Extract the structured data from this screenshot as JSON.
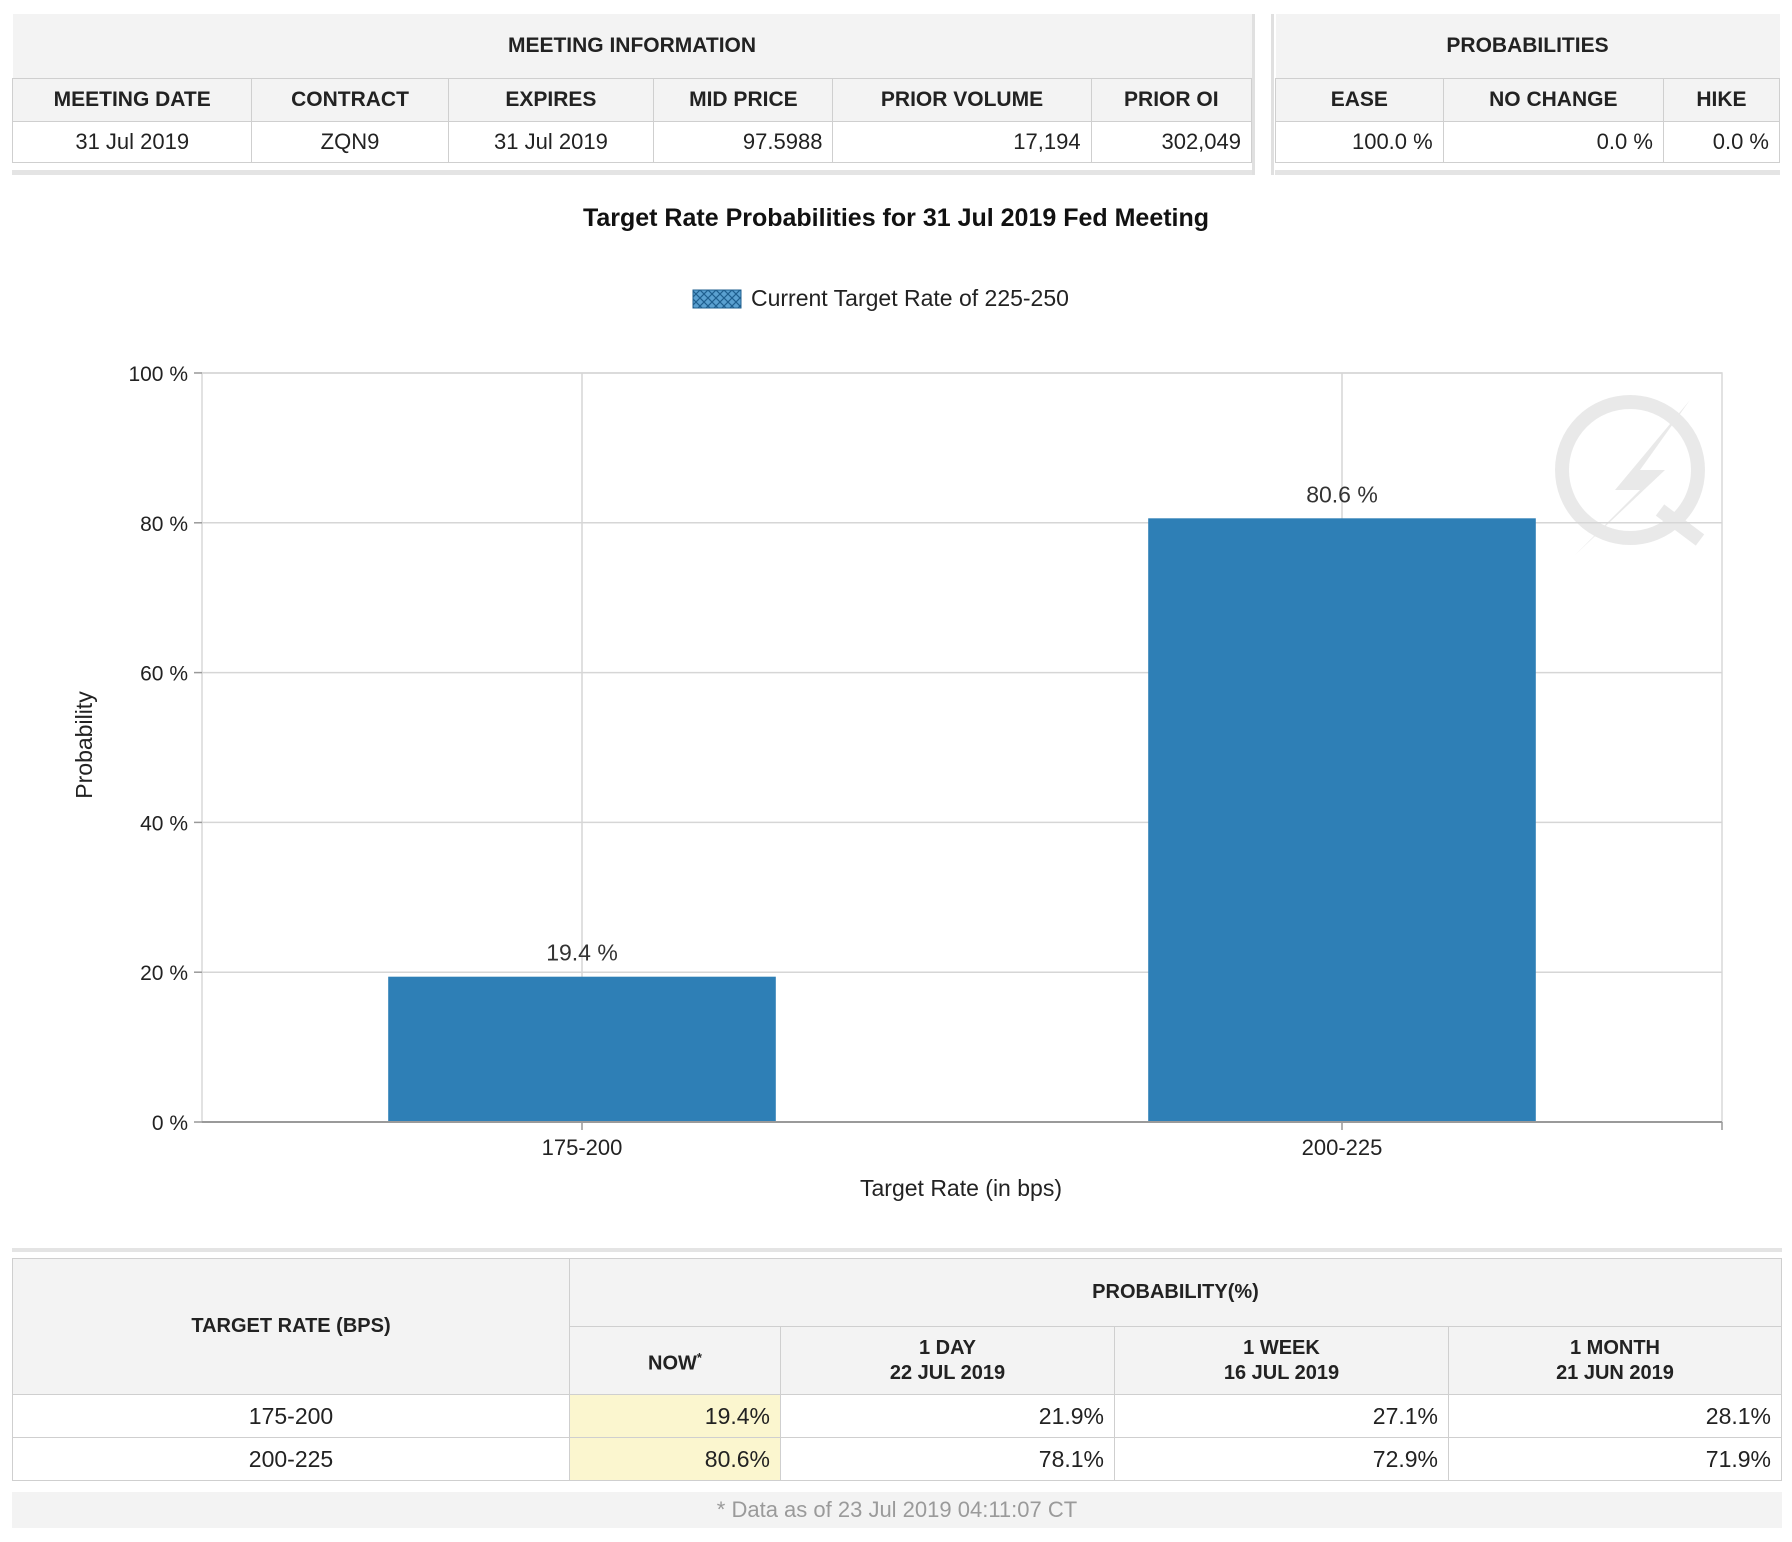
{
  "meeting_info": {
    "group_label": "MEETING INFORMATION",
    "headers": [
      "MEETING DATE",
      "CONTRACT",
      "EXPIRES",
      "MID PRICE",
      "PRIOR VOLUME",
      "PRIOR OI"
    ],
    "row": [
      "31 Jul 2019",
      "ZQN9",
      "31 Jul 2019",
      "97.5988",
      "17,194",
      "302,049"
    ]
  },
  "probabilities": {
    "group_label": "PROBABILITIES",
    "headers": [
      "EASE",
      "NO CHANGE",
      "HIKE"
    ],
    "row": [
      "100.0 %",
      "0.0 %",
      "0.0 %"
    ]
  },
  "chart_data": {
    "type": "bar",
    "title": "Target Rate Probabilities for 31 Jul 2019 Fed Meeting",
    "legend": "Current Target Rate of 225-250",
    "legend_position": "top-center",
    "xlabel": "Target Rate (in bps)",
    "ylabel": "Probability",
    "categories": [
      "175-200",
      "200-225"
    ],
    "values": [
      19.4,
      80.6
    ],
    "data_labels": [
      "19.4 %",
      "80.6 %"
    ],
    "ylim": [
      0,
      100
    ],
    "yticks": [
      0,
      20,
      40,
      60,
      80,
      100
    ],
    "ytick_labels": [
      "0 %",
      "20 %",
      "40 %",
      "60 %",
      "80 %",
      "100 %"
    ],
    "grid": true,
    "bar_color": "#2e7fb6"
  },
  "target_table": {
    "row_header": "TARGET RATE (BPS)",
    "group_label": "PROBABILITY(%)",
    "columns": [
      {
        "line1": "NOW",
        "marker": "*",
        "line2": ""
      },
      {
        "line1": "1 DAY",
        "line2": "22 JUL 2019"
      },
      {
        "line1": "1 WEEK",
        "line2": "16 JUL 2019"
      },
      {
        "line1": "1 MONTH",
        "line2": "21 JUN 2019"
      }
    ],
    "rows": [
      {
        "rate": "175-200",
        "values": [
          "19.4%",
          "21.9%",
          "27.1%",
          "28.1%"
        ]
      },
      {
        "rate": "200-225",
        "values": [
          "80.6%",
          "78.1%",
          "72.9%",
          "71.9%"
        ]
      }
    ],
    "footnote": "* Data as of 23 Jul 2019 04:11:07 CT"
  }
}
